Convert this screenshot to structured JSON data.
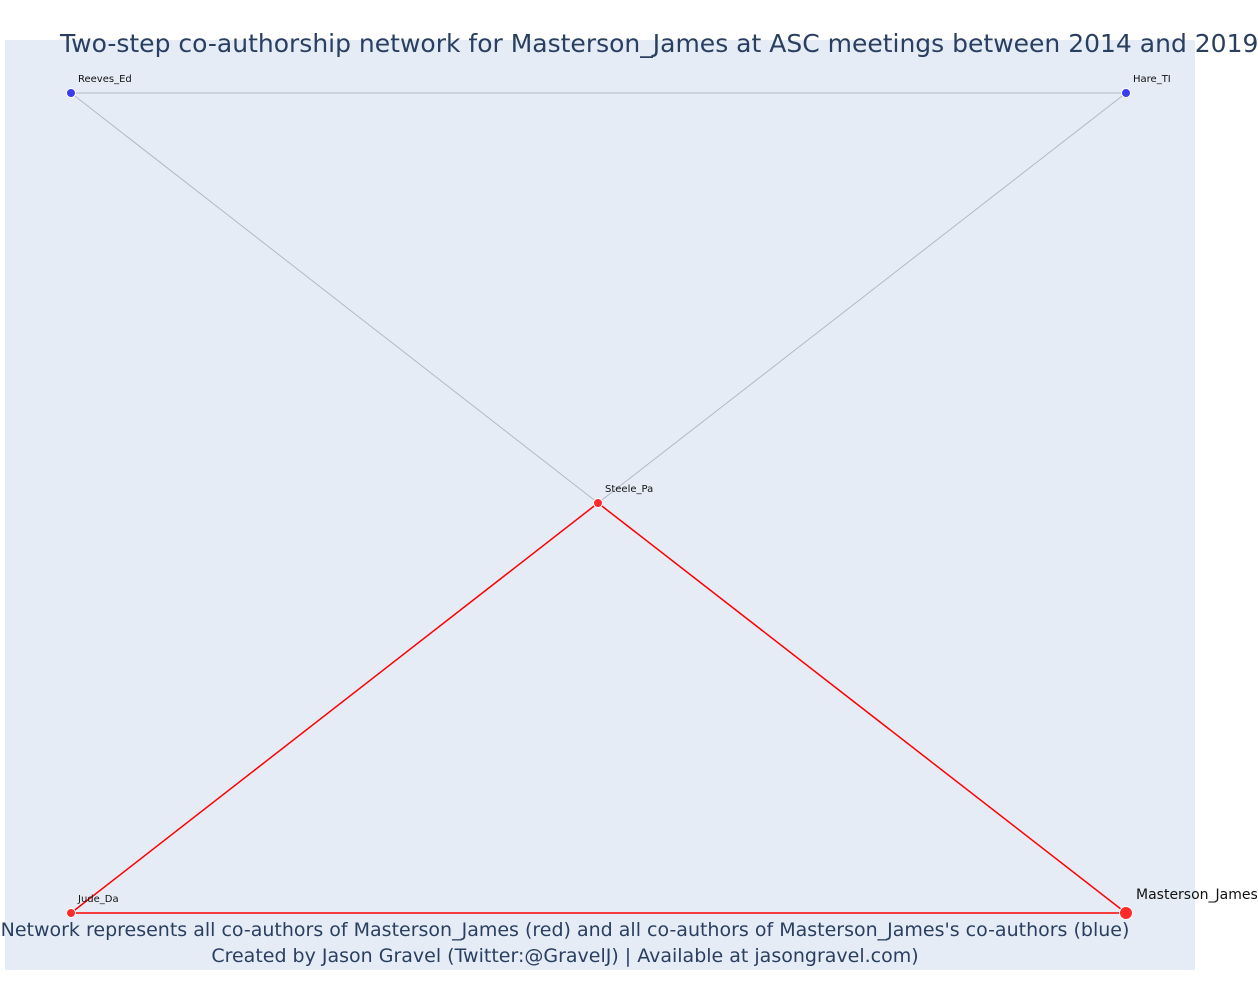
{
  "title": "Two-step co-authorship network for Masterson_James at ASC meetings between 2014 and 2019",
  "caption": {
    "line1": "Network represents all co-authors of Masterson_James (red) and all co-authors of Masterson_James's co-authors (blue)",
    "line2": "Created by Jason Gravel (Twitter:@GravelJ) | Available at jasongravel.com)"
  },
  "colors": {
    "background": "#e5ecf6",
    "first_degree": "#ff2a2a",
    "second_degree": "#3b3bf0",
    "first_degree_edge": "#ff0000",
    "second_degree_edge": "#b4b8c8"
  },
  "nodes": [
    {
      "id": "reeves",
      "label": "Reeves_Ed",
      "group": "second_degree"
    },
    {
      "id": "hare",
      "label": "Hare_TI",
      "group": "second_degree"
    },
    {
      "id": "steele",
      "label": "Steele_Pa",
      "group": "first_degree"
    },
    {
      "id": "jude",
      "label": "Jude_Da",
      "group": "first_degree"
    },
    {
      "id": "masterson",
      "label": "Masterson_James",
      "group": "focus"
    }
  ],
  "edges": [
    {
      "source": "reeves",
      "target": "hare",
      "type": "second_degree"
    },
    {
      "source": "reeves",
      "target": "steele",
      "type": "second_degree"
    },
    {
      "source": "hare",
      "target": "steele",
      "type": "second_degree"
    },
    {
      "source": "steele",
      "target": "jude",
      "type": "first_degree"
    },
    {
      "source": "steele",
      "target": "masterson",
      "type": "first_degree"
    },
    {
      "source": "jude",
      "target": "masterson",
      "type": "first_degree"
    }
  ]
}
